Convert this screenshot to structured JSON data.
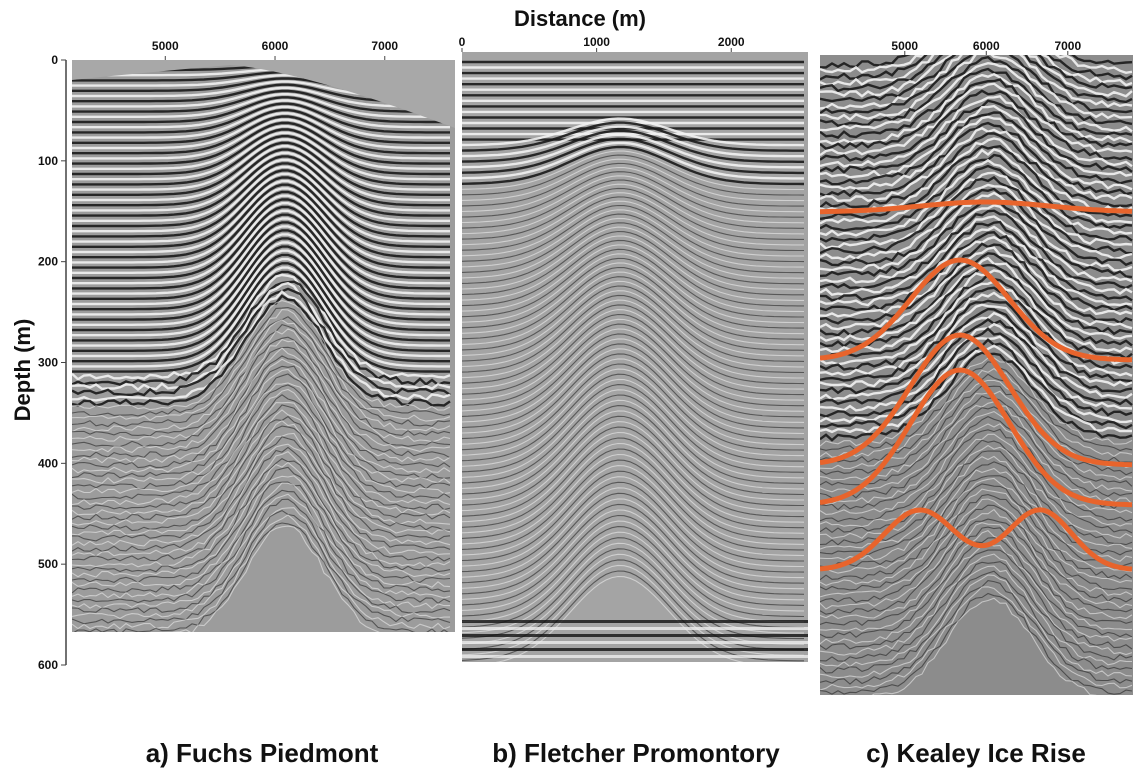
{
  "figure": {
    "title": "Distance (m)",
    "y_label": "Depth (m)",
    "ylim": [
      0,
      600
    ],
    "yticks": [
      0,
      100,
      200,
      300,
      400,
      500,
      600
    ],
    "panels": [
      {
        "caption": "a) Fuchs Piedmont",
        "xlim": [
          4150,
          7640
        ],
        "xticks": [
          5000,
          6000,
          7000
        ]
      },
      {
        "caption": "b) Fletcher Promontory",
        "xlim": [
          0,
          2570
        ],
        "xticks": [
          0,
          1000,
          2000
        ]
      },
      {
        "caption": "c) Kealey Ice Rise",
        "xlim": [
          3960,
          7800
        ],
        "xticks": [
          5000,
          6000,
          7000
        ]
      }
    ]
  }
}
